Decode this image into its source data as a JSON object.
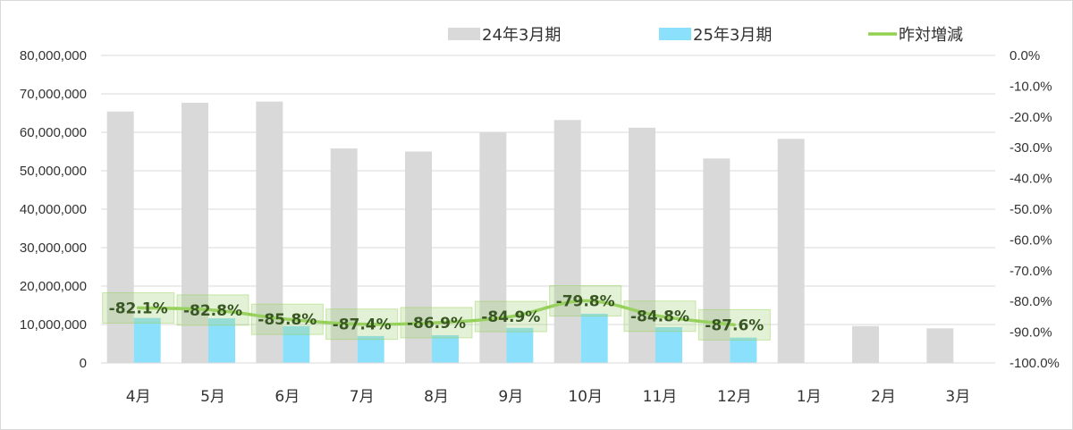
{
  "chart_data": {
    "type": "bar",
    "categories": [
      "4月",
      "5月",
      "6月",
      "7月",
      "8月",
      "9月",
      "10月",
      "11月",
      "12月",
      "1月",
      "2月",
      "3月"
    ],
    "series": [
      {
        "name": "24年3月期",
        "type": "bar",
        "axis": "left",
        "color": "#d9d9d9",
        "values": [
          65400000,
          67700000,
          68000000,
          55800000,
          55000000,
          60000000,
          63200000,
          61200000,
          53200000,
          58300000,
          9600000,
          9000000
        ]
      },
      {
        "name": "25年3月期",
        "type": "bar",
        "axis": "left",
        "color": "#8be0fb",
        "values": [
          11700000,
          11600000,
          9600000,
          7000000,
          7200000,
          9100000,
          12800000,
          9300000,
          6600000,
          null,
          null,
          null
        ]
      },
      {
        "name": "昨対増減",
        "type": "line",
        "axis": "right",
        "color": "#92d050",
        "values": [
          -82.1,
          -82.8,
          -85.8,
          -87.4,
          -86.9,
          -84.9,
          -79.8,
          -84.8,
          -87.6,
          null,
          null,
          null
        ],
        "data_labels": [
          "-82.1%",
          "-82.8%",
          "-85.8%",
          "-87.4%",
          "-86.9%",
          "-84.9%",
          "-79.8%",
          "-84.8%",
          "-87.6%"
        ]
      }
    ],
    "y_left": {
      "ylim": [
        0,
        80000000
      ],
      "tick_values": [
        0,
        10000000,
        20000000,
        30000000,
        40000000,
        50000000,
        60000000,
        70000000,
        80000000
      ],
      "tick_labels": [
        "0",
        "10,000,000",
        "20,000,000",
        "30,000,000",
        "40,000,000",
        "50,000,000",
        "60,000,000",
        "70,000,000",
        "80,000,000"
      ]
    },
    "y_right": {
      "ylim": [
        -100,
        0
      ],
      "tick_values": [
        0,
        -10,
        -20,
        -30,
        -40,
        -50,
        -60,
        -70,
        -80,
        -90,
        -100
      ],
      "tick_labels": [
        "0.0%",
        "-10.0%",
        "-20.0%",
        "-30.0%",
        "-40.0%",
        "-50.0%",
        "-60.0%",
        "-70.0%",
        "-80.0%",
        "-90.0%",
        "-100.0%"
      ]
    },
    "grid": true,
    "legend_position": "top-right"
  }
}
